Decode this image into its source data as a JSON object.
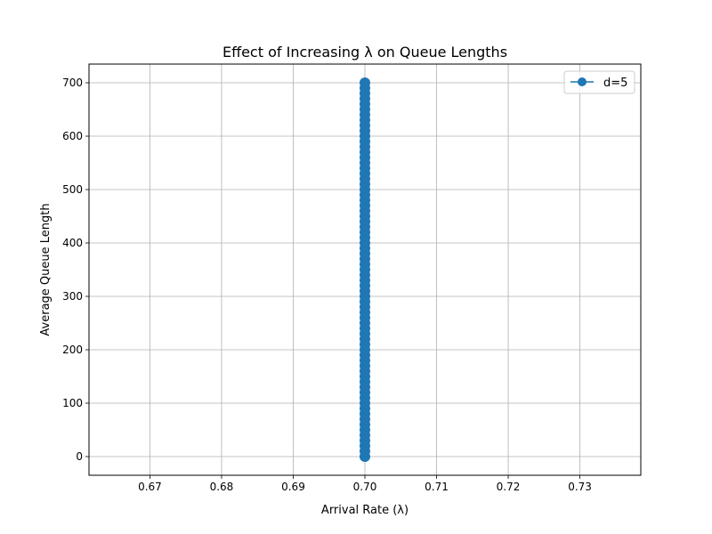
{
  "chart_data": {
    "type": "line",
    "title": "Effect of Increasing λ on Queue Lengths",
    "xlabel": "Arrival Rate (λ)",
    "ylabel": "Average Queue Length",
    "xlim": [
      0.6615,
      0.7385
    ],
    "ylim": [
      -35,
      735
    ],
    "xticks": [
      0.67,
      0.68,
      0.69,
      0.7,
      0.71,
      0.72,
      0.73
    ],
    "xtick_labels": [
      "0.67",
      "0.68",
      "0.69",
      "0.70",
      "0.71",
      "0.72",
      "0.73"
    ],
    "yticks": [
      0,
      100,
      200,
      300,
      400,
      500,
      600,
      700
    ],
    "ytick_labels": [
      "0",
      "100",
      "200",
      "300",
      "400",
      "500",
      "600",
      "700"
    ],
    "grid": true,
    "legend_position": "top-right",
    "series": [
      {
        "name": "d=5",
        "color": "#1f77b4",
        "marker": "circle",
        "x": [
          0.7,
          0.7,
          0.7,
          0.7,
          0.7,
          0.7,
          0.7,
          0.7,
          0.7,
          0.7,
          0.7,
          0.7,
          0.7,
          0.7,
          0.7,
          0.7,
          0.7,
          0.7,
          0.7,
          0.7,
          0.7,
          0.7,
          0.7,
          0.7,
          0.7,
          0.7,
          0.7,
          0.7,
          0.7,
          0.7,
          0.7,
          0.7,
          0.7,
          0.7,
          0.7,
          0.7,
          0.7,
          0.7,
          0.7,
          0.7,
          0.7,
          0.7,
          0.7,
          0.7,
          0.7,
          0.7,
          0.7,
          0.7,
          0.7,
          0.7,
          0.7,
          0.7,
          0.7,
          0.7,
          0.7,
          0.7,
          0.7,
          0.7,
          0.7,
          0.7,
          0.7,
          0.7,
          0.7,
          0.7,
          0.7,
          0.7,
          0.7,
          0.7,
          0.7,
          0.7,
          0.7
        ],
        "values": [
          0,
          10,
          20,
          30,
          40,
          50,
          60,
          70,
          80,
          90,
          100,
          110,
          120,
          130,
          140,
          150,
          160,
          170,
          180,
          190,
          200,
          210,
          220,
          230,
          240,
          250,
          260,
          270,
          280,
          290,
          300,
          310,
          320,
          330,
          340,
          350,
          360,
          370,
          380,
          390,
          400,
          410,
          420,
          430,
          440,
          450,
          460,
          470,
          480,
          490,
          500,
          510,
          520,
          530,
          540,
          550,
          560,
          570,
          580,
          590,
          600,
          610,
          620,
          630,
          640,
          650,
          660,
          670,
          680,
          690,
          700
        ]
      }
    ]
  }
}
